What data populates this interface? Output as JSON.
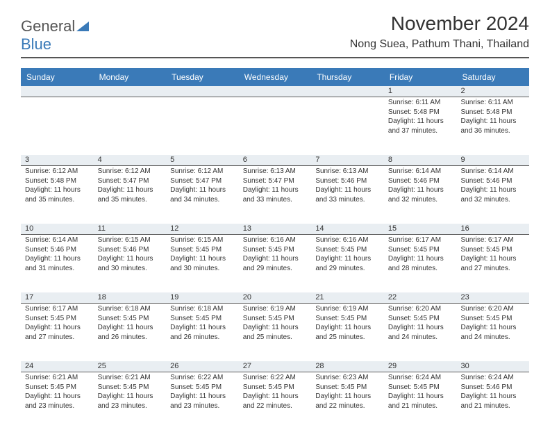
{
  "logo": {
    "text_general": "General",
    "text_blue": "Blue"
  },
  "title": "November 2024",
  "location": "Nong Suea, Pathum Thani, Thailand",
  "colors": {
    "header_bar": "#3a7ab8",
    "daynum_bg": "#e9eef2",
    "daynum_border": "#5a5a5a",
    "text": "#333333",
    "logo_gray": "#555555",
    "logo_blue": "#3a7ab8",
    "background": "#ffffff"
  },
  "typography": {
    "title_fontsize": 28,
    "location_fontsize": 16,
    "dayhead_fontsize": 12,
    "daynum_fontsize": 11,
    "cell_fontsize": 10,
    "font_family": "Arial"
  },
  "day_names": [
    "Sunday",
    "Monday",
    "Tuesday",
    "Wednesday",
    "Thursday",
    "Friday",
    "Saturday"
  ],
  "weeks": [
    {
      "nums": [
        "",
        "",
        "",
        "",
        "",
        "1",
        "2"
      ],
      "cells": [
        null,
        null,
        null,
        null,
        null,
        {
          "sunrise": "Sunrise: 6:11 AM",
          "sunset": "Sunset: 5:48 PM",
          "day1": "Daylight: 11 hours",
          "day2": "and 37 minutes."
        },
        {
          "sunrise": "Sunrise: 6:11 AM",
          "sunset": "Sunset: 5:48 PM",
          "day1": "Daylight: 11 hours",
          "day2": "and 36 minutes."
        }
      ]
    },
    {
      "nums": [
        "3",
        "4",
        "5",
        "6",
        "7",
        "8",
        "9"
      ],
      "cells": [
        {
          "sunrise": "Sunrise: 6:12 AM",
          "sunset": "Sunset: 5:48 PM",
          "day1": "Daylight: 11 hours",
          "day2": "and 35 minutes."
        },
        {
          "sunrise": "Sunrise: 6:12 AM",
          "sunset": "Sunset: 5:47 PM",
          "day1": "Daylight: 11 hours",
          "day2": "and 35 minutes."
        },
        {
          "sunrise": "Sunrise: 6:12 AM",
          "sunset": "Sunset: 5:47 PM",
          "day1": "Daylight: 11 hours",
          "day2": "and 34 minutes."
        },
        {
          "sunrise": "Sunrise: 6:13 AM",
          "sunset": "Sunset: 5:47 PM",
          "day1": "Daylight: 11 hours",
          "day2": "and 33 minutes."
        },
        {
          "sunrise": "Sunrise: 6:13 AM",
          "sunset": "Sunset: 5:46 PM",
          "day1": "Daylight: 11 hours",
          "day2": "and 33 minutes."
        },
        {
          "sunrise": "Sunrise: 6:14 AM",
          "sunset": "Sunset: 5:46 PM",
          "day1": "Daylight: 11 hours",
          "day2": "and 32 minutes."
        },
        {
          "sunrise": "Sunrise: 6:14 AM",
          "sunset": "Sunset: 5:46 PM",
          "day1": "Daylight: 11 hours",
          "day2": "and 32 minutes."
        }
      ]
    },
    {
      "nums": [
        "10",
        "11",
        "12",
        "13",
        "14",
        "15",
        "16"
      ],
      "cells": [
        {
          "sunrise": "Sunrise: 6:14 AM",
          "sunset": "Sunset: 5:46 PM",
          "day1": "Daylight: 11 hours",
          "day2": "and 31 minutes."
        },
        {
          "sunrise": "Sunrise: 6:15 AM",
          "sunset": "Sunset: 5:46 PM",
          "day1": "Daylight: 11 hours",
          "day2": "and 30 minutes."
        },
        {
          "sunrise": "Sunrise: 6:15 AM",
          "sunset": "Sunset: 5:45 PM",
          "day1": "Daylight: 11 hours",
          "day2": "and 30 minutes."
        },
        {
          "sunrise": "Sunrise: 6:16 AM",
          "sunset": "Sunset: 5:45 PM",
          "day1": "Daylight: 11 hours",
          "day2": "and 29 minutes."
        },
        {
          "sunrise": "Sunrise: 6:16 AM",
          "sunset": "Sunset: 5:45 PM",
          "day1": "Daylight: 11 hours",
          "day2": "and 29 minutes."
        },
        {
          "sunrise": "Sunrise: 6:17 AM",
          "sunset": "Sunset: 5:45 PM",
          "day1": "Daylight: 11 hours",
          "day2": "and 28 minutes."
        },
        {
          "sunrise": "Sunrise: 6:17 AM",
          "sunset": "Sunset: 5:45 PM",
          "day1": "Daylight: 11 hours",
          "day2": "and 27 minutes."
        }
      ]
    },
    {
      "nums": [
        "17",
        "18",
        "19",
        "20",
        "21",
        "22",
        "23"
      ],
      "cells": [
        {
          "sunrise": "Sunrise: 6:17 AM",
          "sunset": "Sunset: 5:45 PM",
          "day1": "Daylight: 11 hours",
          "day2": "and 27 minutes."
        },
        {
          "sunrise": "Sunrise: 6:18 AM",
          "sunset": "Sunset: 5:45 PM",
          "day1": "Daylight: 11 hours",
          "day2": "and 26 minutes."
        },
        {
          "sunrise": "Sunrise: 6:18 AM",
          "sunset": "Sunset: 5:45 PM",
          "day1": "Daylight: 11 hours",
          "day2": "and 26 minutes."
        },
        {
          "sunrise": "Sunrise: 6:19 AM",
          "sunset": "Sunset: 5:45 PM",
          "day1": "Daylight: 11 hours",
          "day2": "and 25 minutes."
        },
        {
          "sunrise": "Sunrise: 6:19 AM",
          "sunset": "Sunset: 5:45 PM",
          "day1": "Daylight: 11 hours",
          "day2": "and 25 minutes."
        },
        {
          "sunrise": "Sunrise: 6:20 AM",
          "sunset": "Sunset: 5:45 PM",
          "day1": "Daylight: 11 hours",
          "day2": "and 24 minutes."
        },
        {
          "sunrise": "Sunrise: 6:20 AM",
          "sunset": "Sunset: 5:45 PM",
          "day1": "Daylight: 11 hours",
          "day2": "and 24 minutes."
        }
      ]
    },
    {
      "nums": [
        "24",
        "25",
        "26",
        "27",
        "28",
        "29",
        "30"
      ],
      "cells": [
        {
          "sunrise": "Sunrise: 6:21 AM",
          "sunset": "Sunset: 5:45 PM",
          "day1": "Daylight: 11 hours",
          "day2": "and 23 minutes."
        },
        {
          "sunrise": "Sunrise: 6:21 AM",
          "sunset": "Sunset: 5:45 PM",
          "day1": "Daylight: 11 hours",
          "day2": "and 23 minutes."
        },
        {
          "sunrise": "Sunrise: 6:22 AM",
          "sunset": "Sunset: 5:45 PM",
          "day1": "Daylight: 11 hours",
          "day2": "and 23 minutes."
        },
        {
          "sunrise": "Sunrise: 6:22 AM",
          "sunset": "Sunset: 5:45 PM",
          "day1": "Daylight: 11 hours",
          "day2": "and 22 minutes."
        },
        {
          "sunrise": "Sunrise: 6:23 AM",
          "sunset": "Sunset: 5:45 PM",
          "day1": "Daylight: 11 hours",
          "day2": "and 22 minutes."
        },
        {
          "sunrise": "Sunrise: 6:24 AM",
          "sunset": "Sunset: 5:45 PM",
          "day1": "Daylight: 11 hours",
          "day2": "and 21 minutes."
        },
        {
          "sunrise": "Sunrise: 6:24 AM",
          "sunset": "Sunset: 5:46 PM",
          "day1": "Daylight: 11 hours",
          "day2": "and 21 minutes."
        }
      ]
    }
  ]
}
